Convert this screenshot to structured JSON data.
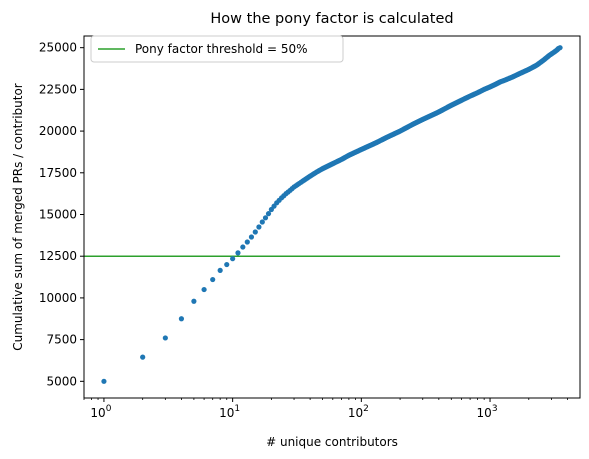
{
  "chart_data": {
    "type": "scatter",
    "title": "How the pony factor is calculated",
    "xlabel": "# unique contributors",
    "ylabel": "Cumulative sum of merged PRs / contributor",
    "xscale": "log",
    "xlim": [
      0.7,
      5000
    ],
    "ylim": [
      4000,
      25700
    ],
    "xticks": [
      {
        "value": 1,
        "label": "10",
        "exp": "0"
      },
      {
        "value": 10,
        "label": "10",
        "exp": "1"
      },
      {
        "value": 100,
        "label": "10",
        "exp": "2"
      },
      {
        "value": 1000,
        "label": "10",
        "exp": "3"
      }
    ],
    "yticks": [
      5000,
      7500,
      10000,
      12500,
      15000,
      17500,
      20000,
      22500,
      25000
    ],
    "grid": false,
    "legend_position": "top-left",
    "series": [
      {
        "name": "",
        "kind": "points",
        "color": "#1f77b4",
        "x": [
          1,
          2,
          3,
          4,
          5,
          6,
          7,
          8,
          9,
          10,
          11,
          12,
          13,
          14,
          15,
          16,
          17,
          18,
          19,
          20,
          22,
          24,
          26,
          28,
          30,
          35,
          40,
          45,
          50,
          60,
          70,
          80,
          100,
          130,
          160,
          200,
          250,
          300,
          400,
          500,
          600,
          700,
          800,
          900,
          1000,
          1100,
          1200,
          1300,
          1500,
          1700,
          2000,
          2300,
          2600,
          2900,
          3100,
          3300,
          3400,
          3500
        ],
        "y": [
          5000,
          6450,
          7600,
          8750,
          9800,
          10500,
          11100,
          11650,
          12000,
          12350,
          12700,
          13050,
          13350,
          13650,
          13950,
          14250,
          14550,
          14800,
          15050,
          15300,
          15700,
          16000,
          16250,
          16450,
          16650,
          17000,
          17300,
          17550,
          17750,
          18050,
          18300,
          18550,
          18900,
          19300,
          19650,
          20000,
          20400,
          20700,
          21150,
          21550,
          21850,
          22100,
          22300,
          22500,
          22650,
          22800,
          22950,
          23050,
          23250,
          23450,
          23700,
          23950,
          24250,
          24550,
          24700,
          24850,
          24950,
          25000
        ]
      },
      {
        "name": "Pony factor threshold = 50%",
        "kind": "line",
        "color": "#2ca02c",
        "x": [
          0.7,
          3500
        ],
        "y": [
          12500,
          12500
        ]
      }
    ]
  }
}
